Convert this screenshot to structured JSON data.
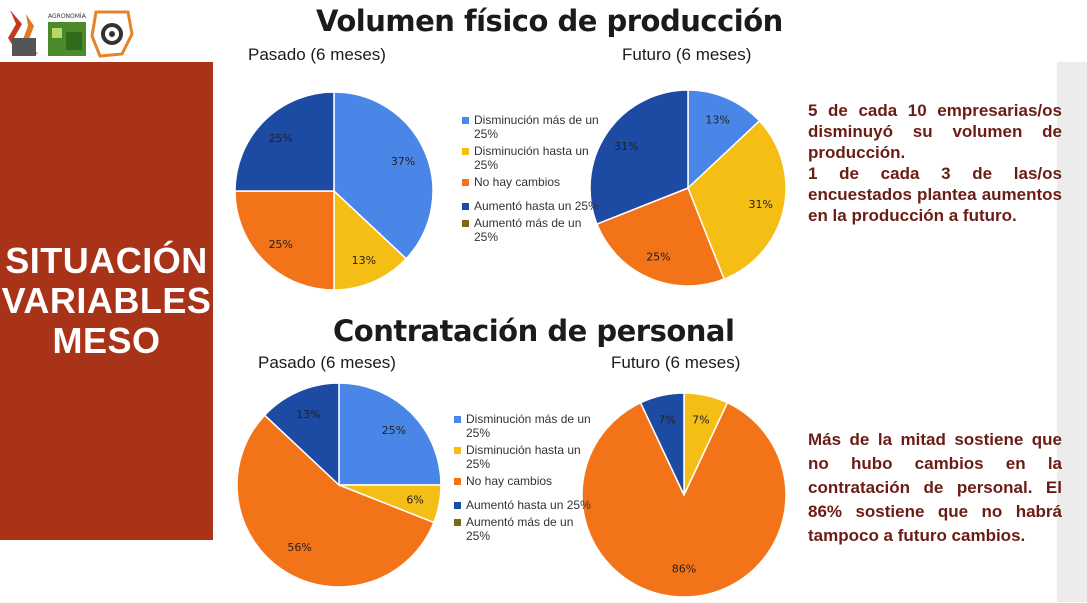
{
  "left_panel": {
    "line1": "SITUACIÓN",
    "line2": "VARIABLES",
    "line3": "MESO"
  },
  "logos": {
    "agronomia_text": "AGRONOMÍA"
  },
  "sections": [
    {
      "title": "Volumen físico de producción"
    },
    {
      "title": "Contratación de personal"
    }
  ],
  "notes": {
    "production": {
      "p1": "5 de cada 10 empresarias/os disminuyó su volumen de producción.",
      "p2": "1 de cada 3 de las/os encuestados plantea aumentos en la producción a futuro."
    },
    "personnel": {
      "p1": "Más de la mitad sostiene que no hubo cambios en la contratación de personal. El 86% sostiene que no habrá tampoco a futuro cambios."
    }
  },
  "colors": {
    "band": "#a93318",
    "disminucion_mas": "#4a86e8",
    "disminucion_hasta": "#f5be14",
    "no_cambios": "#f37318",
    "aumento_hasta": "#1d4aa3",
    "aumento_mas": "#7a6a14"
  },
  "chart_data": [
    {
      "type": "pie",
      "title": "Pasado (6 meses)",
      "series": [
        {
          "name": "Disminución más de un 25%",
          "value": 37,
          "label": "37%",
          "color": "#4a86e8"
        },
        {
          "name": "Disminución hasta un 25%",
          "value": 13,
          "label": "13%",
          "color": "#f5be14"
        },
        {
          "name": "No hay cambios",
          "value": 25,
          "label": "25%",
          "color": "#f37318"
        },
        {
          "name": "Aumentó hasta un 25%",
          "value": 25,
          "label": "25%",
          "color": "#1d4aa3"
        },
        {
          "name": "Aumentó más de un 25%",
          "value": 0,
          "label": "",
          "color": "#7a6a14"
        }
      ]
    },
    {
      "type": "pie",
      "title": "Futuro (6 meses)",
      "series": [
        {
          "name": "Disminución más de un 25%",
          "value": 13,
          "label": "13%",
          "color": "#4a86e8"
        },
        {
          "name": "Disminución hasta un 25%",
          "value": 31,
          "label": "31%",
          "color": "#f5be14"
        },
        {
          "name": "No hay cambios",
          "value": 25,
          "label": "25%",
          "color": "#f37318"
        },
        {
          "name": "Aumentó hasta un 25%",
          "value": 31,
          "label": "31%",
          "color": "#1d4aa3"
        },
        {
          "name": "Aumentó más de un 25%",
          "value": 0,
          "label": "",
          "color": "#7a6a14"
        }
      ]
    },
    {
      "type": "pie",
      "title": "Pasado (6 meses)",
      "series": [
        {
          "name": "Disminución más de un 25%",
          "value": 25,
          "label": "25%",
          "color": "#4a86e8"
        },
        {
          "name": "Disminución hasta un 25%",
          "value": 6,
          "label": "6%",
          "color": "#f5be14"
        },
        {
          "name": "No hay cambios",
          "value": 56,
          "label": "56%",
          "color": "#f37318"
        },
        {
          "name": "Aumentó hasta un 25%",
          "value": 13,
          "label": "13%",
          "color": "#1d4aa3"
        },
        {
          "name": "Aumentó más de un 25%",
          "value": 0,
          "label": "",
          "color": "#7a6a14"
        }
      ]
    },
    {
      "type": "pie",
      "title": "Futuro (6 meses)",
      "series": [
        {
          "name": "Disminución más de un 25%",
          "value": 0,
          "label": "",
          "color": "#4a86e8"
        },
        {
          "name": "Disminución hasta un 25%",
          "value": 7,
          "label": "7%",
          "color": "#f5be14"
        },
        {
          "name": "No hay cambios",
          "value": 86,
          "label": "86%",
          "color": "#f37318"
        },
        {
          "name": "Aumentó hasta un 25%",
          "value": 7,
          "label": "7%",
          "color": "#1d4aa3"
        },
        {
          "name": "Aumentó más de un 25%",
          "value": 0,
          "label": "",
          "color": "#7a6a14"
        }
      ]
    }
  ],
  "legends": [
    {
      "items": [
        {
          "label": "Disminución más de un 25%",
          "color": "#4a86e8"
        },
        {
          "label": "Disminución hasta un 25%",
          "color": "#f5be14"
        },
        {
          "label": "No hay cambios",
          "color": "#f37318"
        },
        {
          "label": "Aumentó hasta un 25%",
          "color": "#1d4aa3"
        },
        {
          "label": "Aumentó más de un 25%",
          "color": "#7a6a14"
        }
      ]
    },
    {
      "items": [
        {
          "label": "Disminución más de un 25%",
          "color": "#4a86e8"
        },
        {
          "label": "Disminución hasta un 25%",
          "color": "#f5be14"
        },
        {
          "label": "No hay cambios",
          "color": "#f37318"
        },
        {
          "label": "Aumentó hasta un 25%",
          "color": "#1d4aa3"
        },
        {
          "label": "Aumentó más de un 25%",
          "color": "#7a6a14"
        }
      ]
    }
  ]
}
